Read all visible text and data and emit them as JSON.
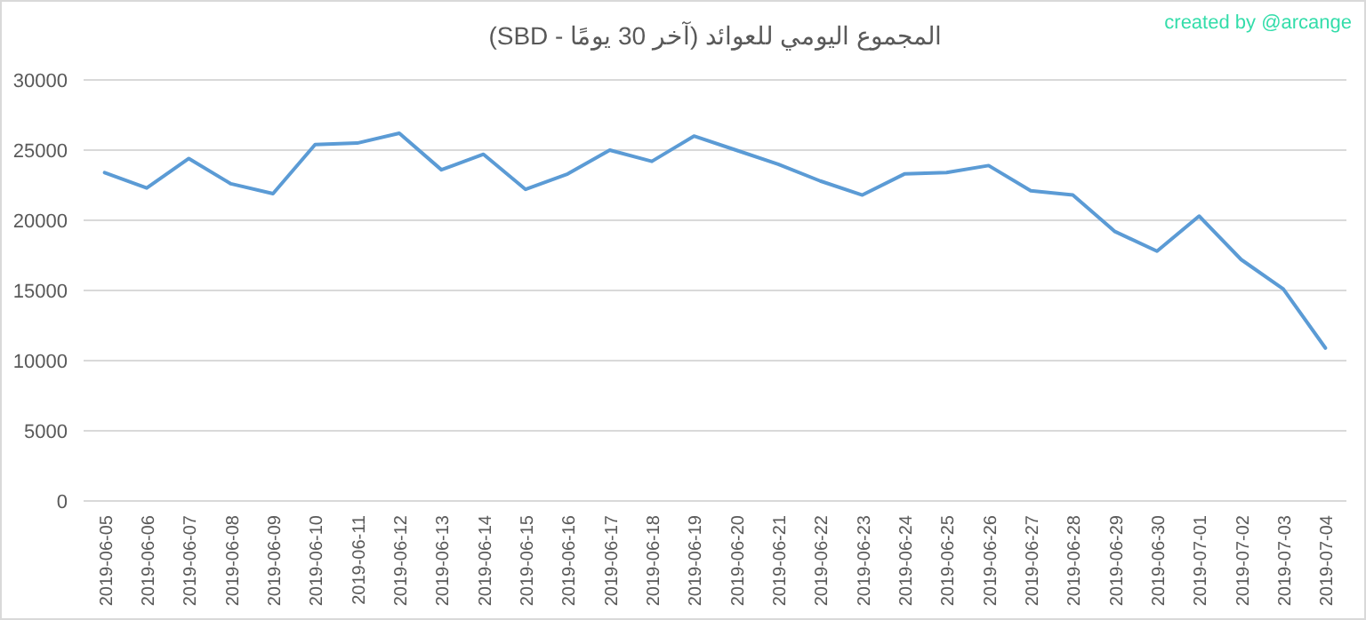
{
  "chart_data": {
    "type": "line",
    "title": "المجموع اليومي للعوائد (آخر 30 يومًا - SBD)",
    "annotations": [
      "created by @arcange"
    ],
    "categories": [
      "2019-06-05",
      "2019-06-06",
      "2019-06-07",
      "2019-06-08",
      "2019-06-09",
      "2019-06-10",
      "2019-06-11",
      "2019-06-12",
      "2019-06-13",
      "2019-06-14",
      "2019-06-15",
      "2019-06-16",
      "2019-06-17",
      "2019-06-18",
      "2019-06-19",
      "2019-06-20",
      "2019-06-21",
      "2019-06-22",
      "2019-06-23",
      "2019-06-24",
      "2019-06-25",
      "2019-06-26",
      "2019-06-27",
      "2019-06-28",
      "2019-06-29",
      "2019-06-30",
      "2019-07-01",
      "2019-07-02",
      "2019-07-03",
      "2019-07-04"
    ],
    "series": [
      {
        "color": "#5b9bd5",
        "values": [
          23400,
          22300,
          24400,
          22600,
          21900,
          25400,
          25500,
          26200,
          23600,
          24700,
          22200,
          23300,
          25000,
          24200,
          26000,
          25000,
          24000,
          22800,
          21800,
          23300,
          23400,
          23900,
          22100,
          21800,
          19200,
          17800,
          20300,
          17200,
          15100,
          10900
        ]
      }
    ],
    "ylim": [
      0,
      30000
    ],
    "yticks": [
      0,
      5000,
      10000,
      15000,
      20000,
      25000,
      30000
    ],
    "grid": "y",
    "marker": "none",
    "line_style": "solid"
  }
}
